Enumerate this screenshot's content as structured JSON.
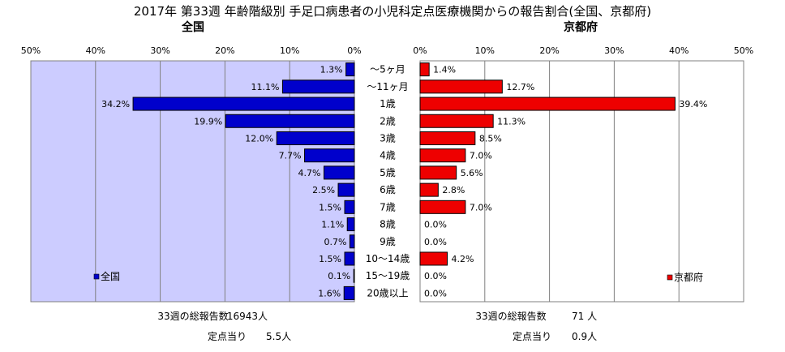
{
  "chart_title": "2017年 第33週 年齢階級別 手足口病患者の小児科定点医療機関からの報告割合(全国、京都府)",
  "chart_data": [
    {
      "type": "bar",
      "orientation": "horizontal",
      "direction": "right-to-left",
      "title": "全国",
      "categories": [
        "～5ヶ月",
        "～11ヶ月",
        "1歳",
        "2歳",
        "3歳",
        "4歳",
        "5歳",
        "6歳",
        "7歳",
        "8歳",
        "9歳",
        "10～14歳",
        "15～19歳",
        "20歳以上"
      ],
      "series": [
        {
          "name": "全国",
          "color": "#0000cc",
          "values": [
            1.3,
            11.1,
            34.2,
            19.9,
            12.0,
            7.7,
            4.7,
            2.5,
            1.5,
            1.1,
            0.7,
            1.5,
            0.1,
            1.6
          ],
          "labels": [
            "1.3%",
            "11.1%",
            "34.2%",
            "19.9%",
            "12.0%",
            "7.7%",
            "4.7%",
            "2.5%",
            "1.5%",
            "1.1%",
            "0.7%",
            "1.5%",
            "0.1%",
            "1.6%"
          ]
        }
      ],
      "xlim": [
        0,
        50
      ],
      "ticks": [
        "50%",
        "40%",
        "30%",
        "20%",
        "10%",
        "0%"
      ],
      "tick_values": [
        50,
        40,
        30,
        20,
        10,
        0
      ],
      "grid": true,
      "plot_background": "#ccccff",
      "legend_position": "bottom-left"
    },
    {
      "type": "bar",
      "orientation": "horizontal",
      "direction": "left-to-right",
      "title": "京都府",
      "categories": [
        "～5ヶ月",
        "～11ヶ月",
        "1歳",
        "2歳",
        "3歳",
        "4歳",
        "5歳",
        "6歳",
        "7歳",
        "8歳",
        "9歳",
        "10～14歳",
        "15～19歳",
        "20歳以上"
      ],
      "series": [
        {
          "name": "京都府",
          "color": "#ee0000",
          "values": [
            1.4,
            12.7,
            39.4,
            11.3,
            8.5,
            7.0,
            5.6,
            2.8,
            7.0,
            0.0,
            0.0,
            4.2,
            0.0,
            0.0
          ],
          "labels": [
            "1.4%",
            "12.7%",
            "39.4%",
            "11.3%",
            "8.5%",
            "7.0%",
            "5.6%",
            "2.8%",
            "7.0%",
            "0.0%",
            "0.0%",
            "4.2%",
            "0.0%",
            "0.0%"
          ]
        }
      ],
      "xlim": [
        0,
        50
      ],
      "ticks": [
        "0%",
        "10%",
        "20%",
        "30%",
        "40%",
        "50%"
      ],
      "tick_values": [
        0,
        10,
        20,
        30,
        40,
        50
      ],
      "grid": true,
      "plot_background": "#ffffff",
      "legend_position": "bottom-right"
    }
  ],
  "footer": {
    "left": {
      "total_label": "33週の総報告数",
      "total_value": "16943人",
      "per_label": "定点当り",
      "per_value": "5.5人"
    },
    "right": {
      "total_label": "33週の総報告数",
      "total_value": "71 人",
      "per_label": "定点当り",
      "per_value": "0.9人"
    }
  }
}
